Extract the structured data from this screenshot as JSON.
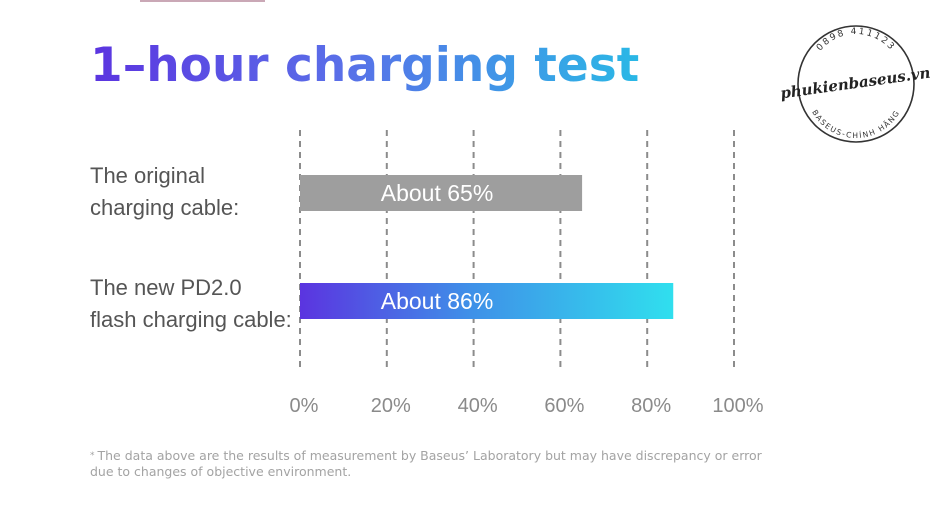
{
  "chart_data": {
    "type": "bar",
    "orientation": "horizontal",
    "title": "1–hour charging test",
    "categories": [
      "The original charging cable:",
      "The new PD2.0 flash charging cable:"
    ],
    "category_lines": [
      [
        "The original",
        "charging cable:"
      ],
      [
        "The new PD2.0",
        "flash charging cable:"
      ]
    ],
    "values": [
      65,
      86
    ],
    "value_labels": [
      "About 65%",
      "About 86%"
    ],
    "x_ticks": [
      "0%",
      "20%",
      "40%",
      "60%",
      "80%",
      "100%"
    ],
    "xlim": [
      0,
      100
    ],
    "grid": true,
    "bar_colors": [
      {
        "type": "solid",
        "color": "#9e9e9e"
      },
      {
        "type": "gradient",
        "from": "#5b34e0",
        "mid": "#3f8fe8",
        "to": "#30dfee"
      }
    ]
  },
  "footnote": {
    "marker": "*",
    "text": "The data above are the results of measurement by Baseus’ Laboratory but may have discrepancy or error due to changes of objective environment."
  },
  "stamp": {
    "phone": "0898 411123",
    "name": "phukienbaseus.vn",
    "subtitle": "BASEUS-CHÍNH HÃNG"
  },
  "colors": {
    "grid": "#8c8c8c",
    "tick_label": "#8a8a8a",
    "label": "#555555",
    "bar_text": "#ffffff"
  }
}
